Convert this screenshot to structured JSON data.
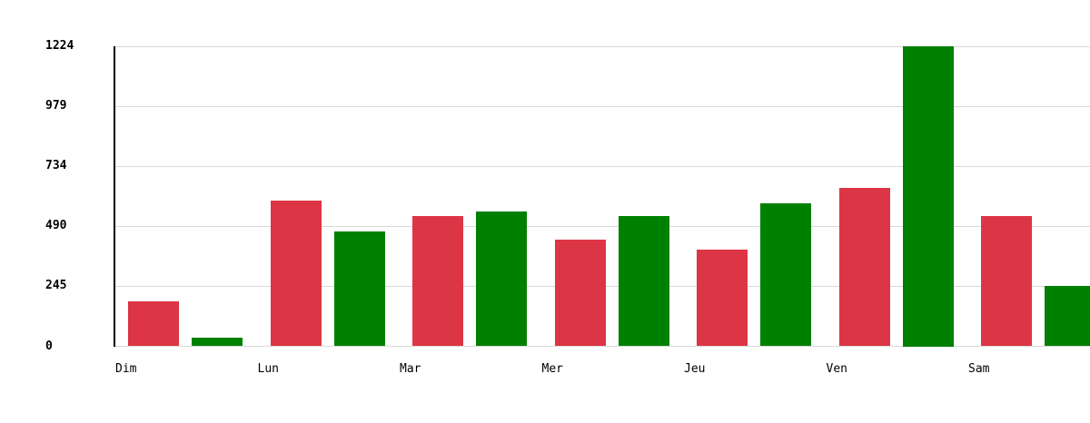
{
  "chart_data": {
    "type": "bar",
    "title": "",
    "xlabel": "",
    "ylabel": "",
    "categories": [
      "Dim",
      "Lun",
      "Mar",
      "Mer",
      "Jeu",
      "Ven",
      "Sam"
    ],
    "series": [
      {
        "name": "red",
        "color": "#dc3545",
        "values": [
          185,
          595,
          533,
          435,
          395,
          645,
          530
        ]
      },
      {
        "name": "green",
        "color": "#008000",
        "values": [
          35,
          470,
          550,
          533,
          585,
          1224,
          245
        ]
      }
    ],
    "yticks": [
      0,
      245,
      490,
      734,
      979,
      1224
    ],
    "ytick_labels": [
      "0",
      "245",
      "490",
      "734",
      "979",
      "1224"
    ],
    "ylim": [
      0,
      1224
    ],
    "grid": true,
    "legend_position": "none",
    "colors": {
      "gridline": "#d9d9d9",
      "axis": "#000000",
      "text": "#000000",
      "background": "#ffffff"
    }
  }
}
